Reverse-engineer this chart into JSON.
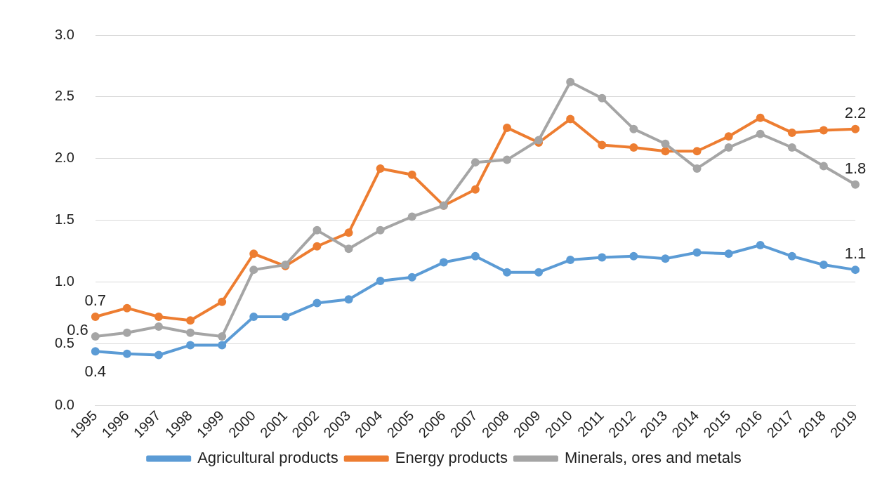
{
  "chart_data": {
    "type": "line",
    "categories": [
      "1995",
      "1996",
      "1997",
      "1998",
      "1999",
      "2000",
      "2001",
      "2002",
      "2003",
      "2004",
      "2005",
      "2006",
      "2007",
      "2008",
      "2009",
      "2010",
      "2011",
      "2012",
      "2013",
      "2014",
      "2015",
      "2016",
      "2017",
      "2018",
      "2019"
    ],
    "series": [
      {
        "name": "Agricultural products",
        "color": "#5b9bd5",
        "values": [
          0.44,
          0.42,
          0.41,
          0.49,
          0.49,
          0.72,
          0.72,
          0.83,
          0.86,
          1.01,
          1.04,
          1.16,
          1.21,
          1.08,
          1.08,
          1.18,
          1.2,
          1.21,
          1.19,
          1.24,
          1.23,
          1.3,
          1.21,
          1.14,
          1.1
        ],
        "value_labels": [
          "0.4",
          null,
          null,
          null,
          null,
          null,
          null,
          null,
          null,
          null,
          null,
          null,
          null,
          null,
          null,
          null,
          null,
          null,
          null,
          null,
          null,
          null,
          null,
          null,
          "1.1"
        ]
      },
      {
        "name": "Energy products",
        "color": "#ed7d31",
        "values": [
          0.72,
          0.79,
          0.72,
          0.69,
          0.84,
          1.23,
          1.13,
          1.29,
          1.4,
          1.92,
          1.87,
          1.62,
          1.75,
          2.25,
          2.13,
          2.32,
          2.11,
          2.09,
          2.06,
          2.06,
          2.18,
          2.33,
          2.21,
          2.23,
          2.24
        ],
        "value_labels": [
          "0.7",
          null,
          null,
          null,
          null,
          null,
          null,
          null,
          null,
          null,
          null,
          null,
          null,
          null,
          null,
          null,
          null,
          null,
          null,
          null,
          null,
          null,
          null,
          null,
          "2.2"
        ]
      },
      {
        "name": "Minerals, ores and metals",
        "color": "#a5a5a5",
        "values": [
          0.56,
          0.59,
          0.64,
          0.59,
          0.56,
          1.1,
          1.14,
          1.42,
          1.27,
          1.42,
          1.53,
          1.62,
          1.97,
          1.99,
          2.15,
          2.62,
          2.49,
          2.24,
          2.12,
          1.92,
          2.09,
          2.2,
          2.09,
          1.94,
          1.79
        ],
        "value_labels": [
          "0.6",
          null,
          null,
          null,
          null,
          null,
          null,
          null,
          null,
          null,
          null,
          null,
          null,
          null,
          null,
          null,
          null,
          null,
          null,
          null,
          null,
          null,
          null,
          null,
          "1.8"
        ]
      }
    ],
    "ylim": [
      0,
      3
    ],
    "yticks": [
      {
        "value": 0,
        "label": "0.0"
      },
      {
        "value": 0.5,
        "label": "0.5"
      },
      {
        "value": 1,
        "label": "1.0"
      },
      {
        "value": 1.5,
        "label": "1.5"
      },
      {
        "value": 2,
        "label": "2.0"
      },
      {
        "value": 2.5,
        "label": "2.5"
      },
      {
        "value": 3,
        "label": "3.0"
      }
    ],
    "grid": "y",
    "legend": "bottom",
    "marker": "circle",
    "line_style": "solid"
  }
}
